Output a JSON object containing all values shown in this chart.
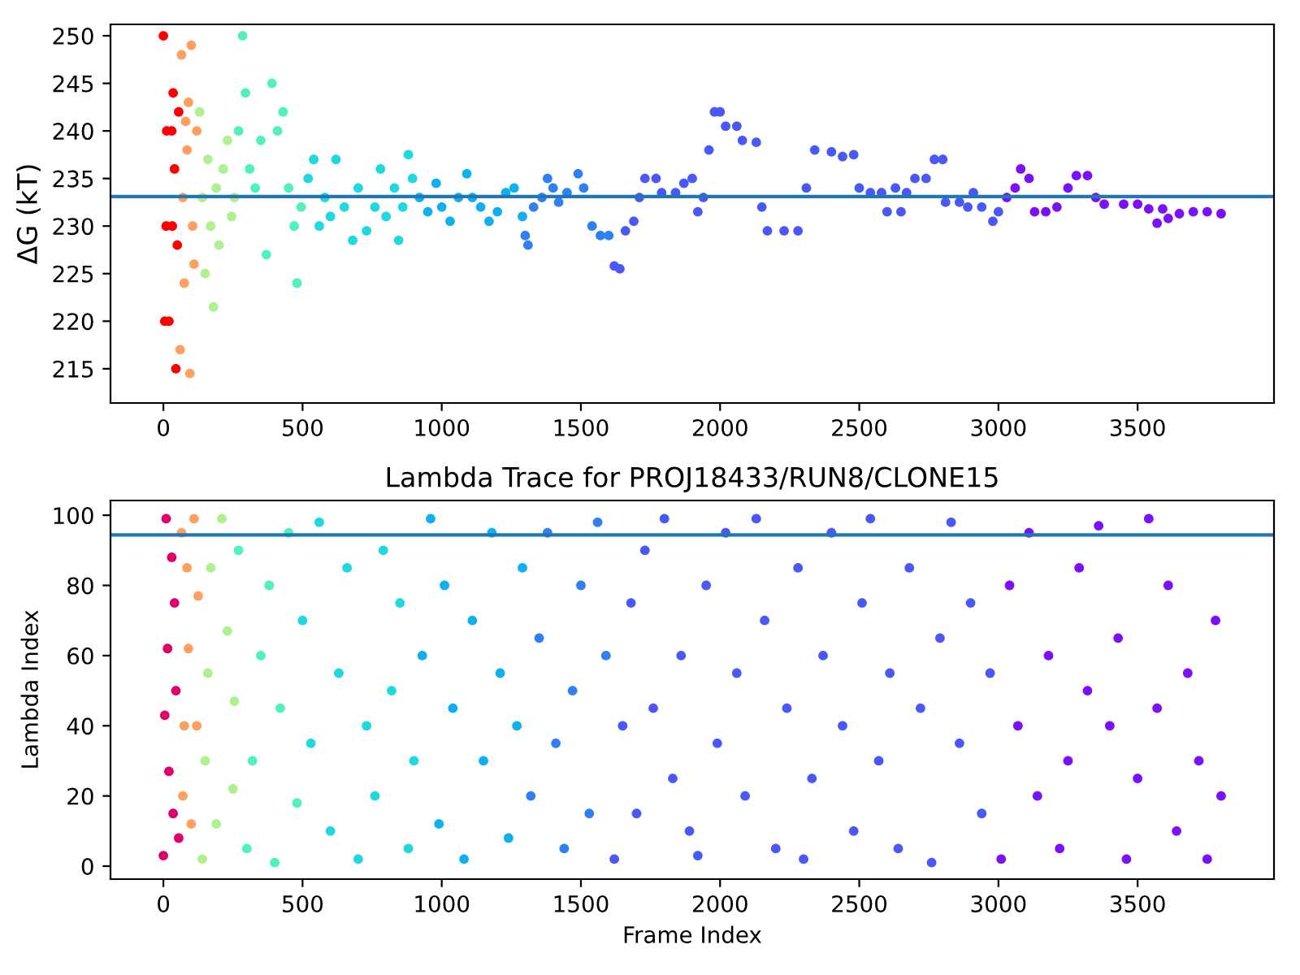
{
  "chart_data": [
    {
      "type": "scatter",
      "ylabel": "ΔG (kT)",
      "xlim": [
        -190,
        3990
      ],
      "ylim": [
        211.4,
        251.2
      ],
      "xticks": [
        0,
        500,
        1000,
        1500,
        2000,
        2500,
        3000,
        3500
      ],
      "yticks": [
        215,
        220,
        225,
        230,
        235,
        240,
        245,
        250
      ],
      "marker": "circle",
      "grid": false,
      "legend": false,
      "ref_lines": [
        {
          "axis": "y",
          "value": 233.1,
          "color": "#1f77b4"
        }
      ],
      "series": [
        {
          "color": "#ff0000",
          "x": [
            0,
            5,
            10,
            12,
            20,
            30,
            32,
            35,
            40,
            45,
            50,
            55
          ],
          "values": [
            250,
            220,
            230,
            240,
            220,
            240,
            230,
            244,
            236,
            215,
            228,
            242
          ]
        },
        {
          "color": "#ffa060",
          "x": [
            60,
            65,
            70,
            75,
            80,
            85,
            90,
            95,
            100,
            105,
            110,
            120
          ],
          "values": [
            217,
            248,
            233,
            224,
            241,
            238,
            243,
            214.5,
            249,
            230,
            226,
            240
          ]
        },
        {
          "color": "#b0f090",
          "x": [
            130,
            140,
            150,
            160,
            170,
            180,
            190,
            200,
            215,
            230,
            245,
            255
          ],
          "values": [
            242,
            233,
            225,
            237,
            230,
            221.5,
            234,
            228,
            236,
            239,
            231,
            233
          ]
        },
        {
          "color": "#50f0c0",
          "x": [
            270,
            285,
            295,
            310,
            330,
            350,
            370,
            390,
            410,
            430,
            450,
            470,
            480,
            495
          ],
          "values": [
            240,
            250,
            244,
            236,
            234,
            239,
            227,
            245,
            240,
            242,
            234,
            230,
            224,
            232
          ]
        },
        {
          "color": "#20d8e0",
          "x": [
            520,
            540,
            560,
            580,
            600,
            620,
            650,
            680,
            700,
            730,
            760,
            780,
            800,
            830,
            845,
            860,
            880,
            895
          ],
          "values": [
            235,
            237,
            230,
            233,
            231,
            237,
            232,
            228.5,
            234,
            229.5,
            232,
            236,
            231,
            234,
            228.5,
            232,
            237.5,
            235
          ]
        },
        {
          "color": "#10b0ee",
          "x": [
            920,
            950,
            980,
            1000,
            1030,
            1060,
            1090,
            1110,
            1140,
            1170,
            1200,
            1230,
            1260,
            1290
          ],
          "values": [
            233,
            231.5,
            234.5,
            232,
            230.5,
            233,
            235.5,
            233,
            232,
            230.5,
            231.5,
            233.5,
            234,
            231
          ]
        },
        {
          "color": "#3080f4",
          "x": [
            1300,
            1310,
            1330,
            1360,
            1380,
            1400,
            1420,
            1450,
            1490,
            1510,
            1540,
            1570,
            1600
          ],
          "values": [
            229,
            228,
            232,
            233,
            235,
            234,
            232.5,
            233.5,
            235.5,
            234,
            230,
            229,
            229
          ]
        },
        {
          "color": "#4a58f8",
          "x": [
            1620,
            1640,
            1660,
            1690,
            1710,
            1730,
            1770,
            1790,
            1840,
            1870,
            1900,
            1920,
            1940,
            1960,
            1980,
            2000,
            2020,
            2060,
            2080,
            2130,
            2150,
            2170,
            2230,
            2280,
            2310,
            2340,
            2400,
            2440,
            2480,
            2500,
            2540,
            2580,
            2600,
            2630,
            2650,
            2670,
            2700,
            2740,
            2770,
            2800,
            2810,
            2860,
            2890,
            2910,
            2940,
            2980,
            3000
          ],
          "values": [
            225.8,
            225.5,
            229.5,
            230.5,
            233,
            235,
            235,
            233.5,
            233.5,
            234.5,
            235,
            231.5,
            233,
            238,
            242,
            242,
            240.5,
            240.5,
            239,
            238.8,
            232,
            229.5,
            229.5,
            229.5,
            234,
            238,
            237.8,
            237.3,
            237.5,
            234,
            233.5,
            233.5,
            231.5,
            234,
            231.5,
            233.5,
            235,
            235,
            237,
            237,
            232.5,
            232.5,
            232,
            233.5,
            232,
            230.5,
            231.5
          ]
        },
        {
          "color": "#7a10fc",
          "x": [
            3030,
            3060,
            3080,
            3110,
            3130,
            3170,
            3210,
            3250,
            3280,
            3320,
            3350,
            3380,
            3450,
            3500,
            3540,
            3570,
            3590,
            3610,
            3650,
            3700,
            3750,
            3800
          ],
          "values": [
            233,
            234,
            236,
            235,
            231.5,
            231.5,
            232,
            234,
            235.3,
            235.3,
            233,
            232.3,
            232.3,
            232.3,
            231.8,
            230.3,
            231.8,
            230.8,
            231.3,
            231.5,
            231.5,
            231.3
          ]
        }
      ]
    },
    {
      "type": "scatter",
      "title": "Lambda Trace for PROJ18433/RUN8/CLONE15",
      "xlabel": "Frame Index",
      "ylabel": "Lambda Index",
      "xlim": [
        -190,
        3990
      ],
      "ylim": [
        -3.7,
        104.2
      ],
      "xticks": [
        0,
        500,
        1000,
        1500,
        2000,
        2500,
        3000,
        3500
      ],
      "yticks": [
        0,
        20,
        40,
        60,
        80,
        100
      ],
      "marker": "circle",
      "grid": false,
      "legend": false,
      "ref_lines": [
        {
          "axis": "y",
          "value": 94.4,
          "color": "#1f77b4"
        }
      ],
      "series": [
        {
          "color": "#e0006a",
          "x": [
            0,
            5,
            10,
            15,
            20,
            30,
            35,
            40,
            45,
            55
          ],
          "values": [
            3,
            43,
            99,
            62,
            27,
            88,
            15,
            75,
            50,
            8
          ]
        },
        {
          "color": "#ffa060",
          "x": [
            65,
            70,
            75,
            85,
            90,
            100,
            110,
            120,
            125
          ],
          "values": [
            95,
            20,
            40,
            85,
            62,
            12,
            99,
            40,
            77
          ]
        },
        {
          "color": "#b0f090",
          "x": [
            140,
            150,
            160,
            170,
            190,
            210,
            230,
            250,
            255
          ],
          "values": [
            2,
            30,
            55,
            85,
            12,
            99,
            67,
            22,
            47
          ]
        },
        {
          "color": "#50f0c0",
          "x": [
            270,
            300,
            320,
            350,
            380,
            400,
            420,
            450,
            480
          ],
          "values": [
            90,
            5,
            30,
            60,
            80,
            1,
            45,
            95,
            18
          ]
        },
        {
          "color": "#20d8e0",
          "x": [
            500,
            530,
            560,
            600,
            630,
            660,
            700,
            730,
            760,
            790,
            820,
            850,
            880,
            900
          ],
          "values": [
            70,
            35,
            98,
            10,
            55,
            85,
            2,
            40,
            20,
            90,
            50,
            75,
            5,
            30
          ]
        },
        {
          "color": "#10b0ee",
          "x": [
            930,
            960,
            990,
            1010,
            1040,
            1080,
            1110,
            1150,
            1180,
            1210,
            1240,
            1270,
            1290
          ],
          "values": [
            60,
            99,
            12,
            80,
            45,
            2,
            70,
            30,
            95,
            55,
            8,
            40,
            85
          ]
        },
        {
          "color": "#3080f4",
          "x": [
            1320,
            1350,
            1380,
            1410,
            1440,
            1470,
            1500,
            1530,
            1560,
            1590
          ],
          "values": [
            20,
            65,
            95,
            35,
            5,
            50,
            80,
            15,
            98,
            60
          ]
        },
        {
          "color": "#4a58f8",
          "x": [
            1620,
            1650,
            1680,
            1700,
            1730,
            1760,
            1800,
            1830,
            1860,
            1890,
            1920,
            1950,
            1990,
            2020,
            2060,
            2090,
            2130,
            2160,
            2200,
            2240,
            2280,
            2300,
            2330,
            2370,
            2400,
            2440,
            2480,
            2510,
            2540,
            2570,
            2610,
            2640,
            2680,
            2720,
            2760,
            2790,
            2830,
            2860,
            2900,
            2940,
            2970
          ],
          "values": [
            2,
            40,
            75,
            15,
            90,
            45,
            99,
            25,
            60,
            10,
            3,
            80,
            35,
            95,
            55,
            20,
            99,
            70,
            5,
            45,
            85,
            2,
            25,
            60,
            95,
            40,
            10,
            75,
            99,
            30,
            55,
            5,
            85,
            45,
            1,
            65,
            98,
            35,
            75,
            15,
            55
          ]
        },
        {
          "color": "#7a10fc",
          "x": [
            3010,
            3040,
            3070,
            3110,
            3140,
            3180,
            3220,
            3250,
            3290,
            3320,
            3360,
            3400,
            3430,
            3460,
            3500,
            3540,
            3570,
            3610,
            3640,
            3680,
            3720,
            3750,
            3780,
            3800
          ],
          "values": [
            2,
            80,
            40,
            95,
            20,
            60,
            5,
            30,
            85,
            50,
            97,
            40,
            65,
            2,
            25,
            99,
            45,
            80,
            10,
            55,
            30,
            2,
            70,
            20
          ]
        }
      ]
    }
  ]
}
